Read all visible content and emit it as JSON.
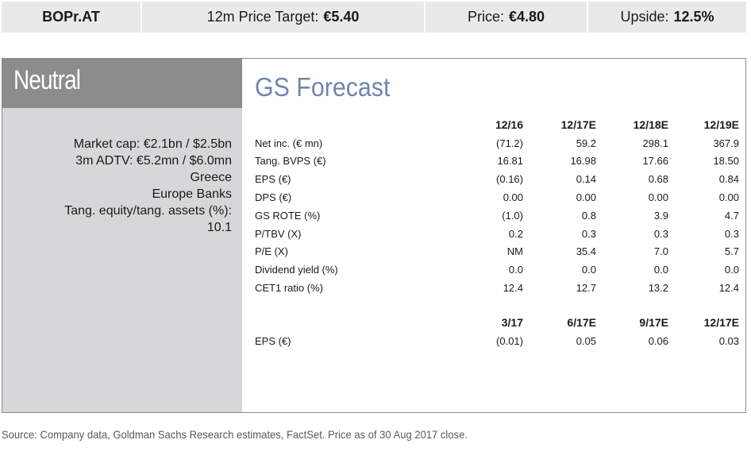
{
  "header": {
    "ticker": "BOPr.AT",
    "target_label": "12m Price Target:",
    "target_value": "€5.40",
    "price_label": "Price:",
    "price_value": "€4.80",
    "upside_label": "Upside:",
    "upside_value": "12.5%"
  },
  "rating": "Neutral",
  "metrics": [
    "Market cap: €2.1bn / $2.5bn",
    "3m ADTV: €5.2mn / $6.0mn",
    "Greece",
    "Europe Banks",
    "Tang. equity/tang. assets (%):",
    "10.1"
  ],
  "forecast": {
    "title": "GS Forecast",
    "annual": {
      "columns": [
        "12/16",
        "12/17E",
        "12/18E",
        "12/19E"
      ],
      "rows": [
        {
          "label": "Net inc. (€ mn)",
          "values": [
            "(71.2)",
            "59.2",
            "298.1",
            "367.9"
          ]
        },
        {
          "label": "Tang. BVPS (€)",
          "values": [
            "16.81",
            "16.98",
            "17.66",
            "18.50"
          ]
        },
        {
          "label": "EPS (€)",
          "values": [
            "(0.16)",
            "0.14",
            "0.68",
            "0.84"
          ]
        },
        {
          "label": "DPS (€)",
          "values": [
            "0.00",
            "0.00",
            "0.00",
            "0.00"
          ]
        },
        {
          "label": "GS ROTE (%)",
          "values": [
            "(1.0)",
            "0.8",
            "3.9",
            "4.7"
          ]
        },
        {
          "label": "P/TBV (X)",
          "values": [
            "0.2",
            "0.3",
            "0.3",
            "0.3"
          ]
        },
        {
          "label": "P/E (X)",
          "values": [
            "NM",
            "35.4",
            "7.0",
            "5.7"
          ]
        },
        {
          "label": "Dividend yield (%)",
          "values": [
            "0.0",
            "0.0",
            "0.0",
            "0.0"
          ]
        },
        {
          "label": "CET1 ratio (%)",
          "values": [
            "12.4",
            "12.7",
            "13.2",
            "12.4"
          ]
        }
      ]
    },
    "quarterly": {
      "columns": [
        "3/17",
        "6/17E",
        "9/17E",
        "12/17E"
      ],
      "rows": [
        {
          "label": "EPS (€)",
          "values": [
            "(0.01)",
            "0.05",
            "0.06",
            "0.03"
          ]
        }
      ]
    }
  },
  "source": "Source: Company data, Goldman Sachs Research estimates, FactSet. Price as of 30 Aug 2017 close.",
  "colors": {
    "header_bg": "#e9e9e9",
    "rating_bg": "#8c8c8c",
    "panel_bg": "#d7d7d9",
    "title_blue": "#6f87ac"
  }
}
